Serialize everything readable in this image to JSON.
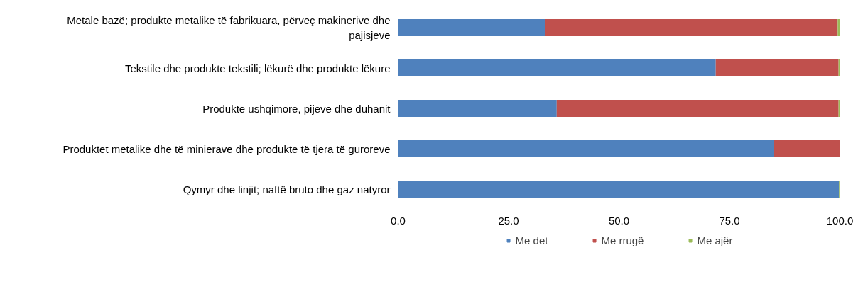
{
  "chart_data": {
    "type": "bar",
    "orientation": "horizontal",
    "stacked": true,
    "categories": [
      "Metale bazë; produkte metalike të fabrikuara, përveç makinerive dhe pajisjeve",
      "Tekstile dhe produkte tekstili; lëkurë dhe produkte lëkure",
      "Produkte ushqimore, pijeve dhe duhanit",
      "Produktet metalike dhe të minierave dhe produkte të tjera të guroreve",
      "Qymyr dhe linjit; naftë bruto dhe gaz natyror"
    ],
    "series": [
      {
        "name": "Me det",
        "color": "#4f81bd",
        "values": [
          33.2,
          71.9,
          35.9,
          85.0,
          99.8
        ]
      },
      {
        "name": "Me rrugë",
        "color": "#c0504d",
        "values": [
          66.3,
          27.8,
          63.8,
          15.0,
          0.0
        ]
      },
      {
        "name": "Me ajër",
        "color": "#9bbb59",
        "values": [
          0.5,
          0.3,
          0.3,
          0.0,
          0.2
        ]
      }
    ],
    "xlim": [
      0,
      100
    ],
    "xticks": [
      {
        "value": 0,
        "label": "0.0"
      },
      {
        "value": 25,
        "label": "25.0"
      },
      {
        "value": 50,
        "label": "50.0"
      },
      {
        "value": 75,
        "label": "75.0"
      },
      {
        "value": 100,
        "label": "100.0"
      }
    ],
    "grid": false,
    "legend": "bottom"
  }
}
